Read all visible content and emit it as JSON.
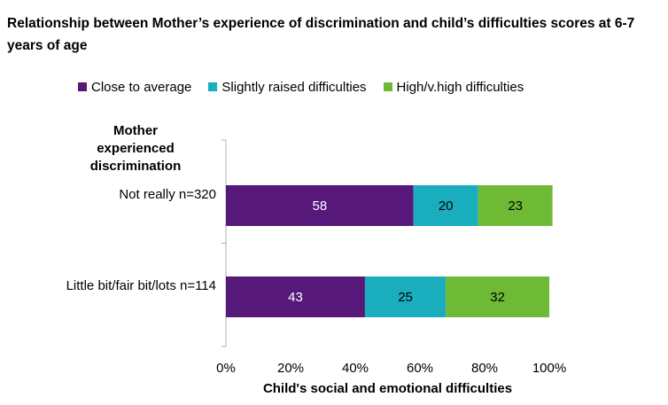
{
  "title": "Relationship between Mother’s experience of discrimination and child’s difficulties scores at 6-7 years of age",
  "legend_title": "Mother experienced discrimination",
  "colors": {
    "Close to average": "#56197a",
    "Slightly raised difficulties": "#1aadbe",
    "High/v.high difficulties": "#6fba35"
  },
  "chart_data": {
    "type": "bar",
    "orientation": "horizontal",
    "stacked": true,
    "title": "Relationship between Mother’s experience of discrimination and child’s difficulties scores at 6-7 years of age",
    "categories": [
      "Not really n=320",
      "Little bit/fair bit/lots n=114"
    ],
    "series": [
      {
        "name": "Close to average",
        "values": [
          58,
          43
        ]
      },
      {
        "name": "Slightly raised difficulties",
        "values": [
          20,
          25
        ]
      },
      {
        "name": "High/v.high difficulties",
        "values": [
          23,
          32
        ]
      }
    ],
    "xlabel": "Child's social and emotional difficulties",
    "ylabel": "Mother experienced discrimination",
    "xlim": [
      0,
      100
    ],
    "xticks": [
      "0%",
      "20%",
      "40%",
      "60%",
      "80%",
      "100%"
    ],
    "legend_position": "top",
    "grid": false
  }
}
